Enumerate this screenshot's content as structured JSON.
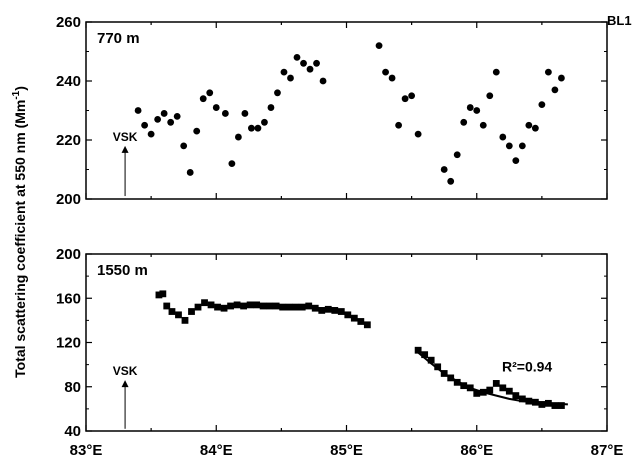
{
  "chart_data": {
    "type": "scatter",
    "corner_label": "BL1",
    "ylabel_text": "Total scattering coefficient at 550 nm (Mm",
    "ylabel_sup": "-1",
    "ylabel_close": ")",
    "xlim": [
      83,
      87
    ],
    "x_ticks": [
      "83°E",
      "84°E",
      "85°E",
      "86°E",
      "87°E"
    ],
    "panels": [
      {
        "label": "770 m",
        "ylim": [
          200,
          260
        ],
        "y_ticks": [
          "200",
          "220",
          "240",
          "260"
        ],
        "marker": "circle",
        "annotation": {
          "text": "VSK",
          "x": 83.3,
          "y_from": 201,
          "y_to": 218
        },
        "points": [
          [
            83.4,
            230
          ],
          [
            83.45,
            225
          ],
          [
            83.5,
            222
          ],
          [
            83.55,
            227
          ],
          [
            83.6,
            229
          ],
          [
            83.65,
            226
          ],
          [
            83.7,
            228
          ],
          [
            83.75,
            218
          ],
          [
            83.8,
            209
          ],
          [
            83.85,
            223
          ],
          [
            83.9,
            234
          ],
          [
            83.95,
            236
          ],
          [
            84.0,
            231
          ],
          [
            84.07,
            229
          ],
          [
            84.12,
            212
          ],
          [
            84.17,
            221
          ],
          [
            84.22,
            229
          ],
          [
            84.27,
            224
          ],
          [
            84.32,
            224
          ],
          [
            84.37,
            226
          ],
          [
            84.42,
            231
          ],
          [
            84.47,
            236
          ],
          [
            84.52,
            243
          ],
          [
            84.57,
            241
          ],
          [
            84.62,
            248
          ],
          [
            84.67,
            246
          ],
          [
            84.72,
            244
          ],
          [
            84.77,
            246
          ],
          [
            84.82,
            240
          ],
          [
            85.25,
            252
          ],
          [
            85.3,
            243
          ],
          [
            85.35,
            241
          ],
          [
            85.4,
            225
          ],
          [
            85.45,
            234
          ],
          [
            85.5,
            235
          ],
          [
            85.55,
            222
          ],
          [
            85.75,
            210
          ],
          [
            85.8,
            206
          ],
          [
            85.85,
            215
          ],
          [
            85.9,
            226
          ],
          [
            85.95,
            231
          ],
          [
            86.0,
            230
          ],
          [
            86.05,
            225
          ],
          [
            86.1,
            235
          ],
          [
            86.15,
            243
          ],
          [
            86.2,
            221
          ],
          [
            86.25,
            218
          ],
          [
            86.3,
            213
          ],
          [
            86.35,
            218
          ],
          [
            86.4,
            225
          ],
          [
            86.45,
            224
          ],
          [
            86.5,
            232
          ],
          [
            86.55,
            243
          ],
          [
            86.6,
            237
          ],
          [
            86.65,
            241
          ]
        ]
      },
      {
        "label": "1550 m",
        "ylim": [
          40,
          200
        ],
        "y_ticks": [
          "40",
          "80",
          "120",
          "160",
          "200"
        ],
        "marker": "square",
        "annotation": {
          "text": "VSK",
          "x": 83.3,
          "y_from": 42,
          "y_to": 86
        },
        "r2_label": "R²=0.94",
        "points": [
          [
            83.56,
            163
          ],
          [
            83.59,
            164
          ],
          [
            83.62,
            153
          ],
          [
            83.66,
            148
          ],
          [
            83.71,
            145
          ],
          [
            83.76,
            140
          ],
          [
            83.81,
            148
          ],
          [
            83.86,
            152
          ],
          [
            83.91,
            156
          ],
          [
            83.96,
            154
          ],
          [
            84.01,
            152
          ],
          [
            84.06,
            151
          ],
          [
            84.11,
            153
          ],
          [
            84.16,
            154
          ],
          [
            84.21,
            153
          ],
          [
            84.26,
            154
          ],
          [
            84.31,
            154
          ],
          [
            84.36,
            153
          ],
          [
            84.41,
            153
          ],
          [
            84.46,
            153
          ],
          [
            84.51,
            152
          ],
          [
            84.56,
            152
          ],
          [
            84.61,
            152
          ],
          [
            84.66,
            152
          ],
          [
            84.71,
            153
          ],
          [
            84.76,
            151
          ],
          [
            84.81,
            149
          ],
          [
            84.86,
            150
          ],
          [
            84.91,
            149
          ],
          [
            84.96,
            148
          ],
          [
            85.01,
            145
          ],
          [
            85.06,
            142
          ],
          [
            85.11,
            139
          ],
          [
            85.16,
            136
          ],
          [
            85.55,
            113
          ],
          [
            85.6,
            109
          ],
          [
            85.65,
            104
          ],
          [
            85.7,
            98
          ],
          [
            85.75,
            92
          ],
          [
            85.8,
            88
          ],
          [
            85.85,
            84
          ],
          [
            85.9,
            81
          ],
          [
            85.95,
            79
          ],
          [
            86.0,
            74
          ],
          [
            86.05,
            75
          ],
          [
            86.1,
            77
          ],
          [
            86.15,
            83
          ],
          [
            86.2,
            79
          ],
          [
            86.25,
            76
          ],
          [
            86.3,
            72
          ],
          [
            86.35,
            69
          ],
          [
            86.4,
            67
          ],
          [
            86.45,
            66
          ],
          [
            86.5,
            64
          ],
          [
            86.55,
            65
          ],
          [
            86.6,
            63
          ],
          [
            86.65,
            63
          ]
        ],
        "fit_curve": [
          [
            85.55,
            111
          ],
          [
            85.65,
            101
          ],
          [
            85.75,
            92
          ],
          [
            85.85,
            85
          ],
          [
            85.95,
            79
          ],
          [
            86.05,
            75
          ],
          [
            86.15,
            72
          ],
          [
            86.25,
            69
          ],
          [
            86.35,
            67
          ],
          [
            86.45,
            66
          ],
          [
            86.55,
            65
          ],
          [
            86.7,
            64
          ]
        ]
      }
    ]
  }
}
